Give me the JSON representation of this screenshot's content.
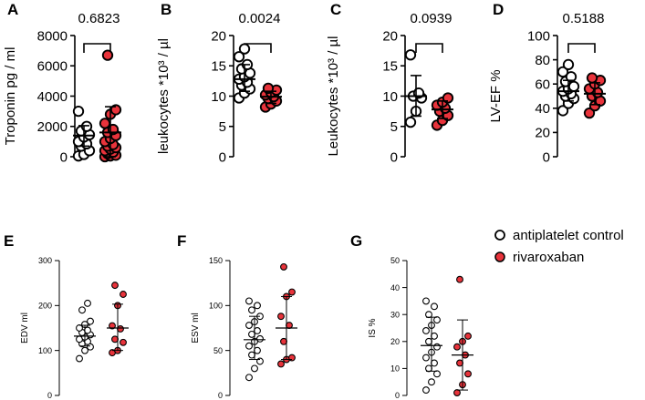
{
  "figure": {
    "legend": [
      {
        "label": "antiplatelet control",
        "fill": "#ffffff",
        "stroke": "#000000"
      },
      {
        "label": "rivaroxaban",
        "fill": "#e8333b",
        "stroke": "#000000"
      }
    ]
  },
  "chart_data": [
    {
      "panel": "A",
      "type": "scatter",
      "ylabel": "Troponin pg / ml",
      "ylim": [
        0,
        8000
      ],
      "yticks": [
        0,
        2000,
        4000,
        6000,
        8000
      ],
      "pvalue": "0.6823",
      "groups": [
        {
          "name": "antiplatelet control",
          "mean": 1400,
          "sd_low": 700,
          "sd_high": 2050,
          "points": [
            50,
            150,
            400,
            700,
            850,
            1000,
            1300,
            1450,
            1700,
            2000,
            3000
          ]
        },
        {
          "name": "rivaroxaban",
          "mean": 1600,
          "sd_low": 0,
          "sd_high": 3300,
          "points": [
            0,
            50,
            100,
            200,
            300,
            400,
            500,
            600,
            700,
            800,
            1000,
            1200,
            1400,
            1600,
            1800,
            2200,
            2800,
            3100,
            6700
          ]
        }
      ]
    },
    {
      "panel": "B",
      "type": "scatter",
      "ylabel": "leukocytes *10³ / µl",
      "ylim": [
        0,
        20
      ],
      "yticks": [
        0,
        5,
        10,
        15,
        20
      ],
      "pvalue": "0.0024",
      "groups": [
        {
          "name": "antiplatelet control",
          "mean": 12.8,
          "sd_low": 10.8,
          "sd_high": 15.2,
          "points": [
            9.7,
            10.5,
            11.2,
            11.8,
            12.3,
            12.8,
            13.2,
            13.8,
            14.5,
            15.2,
            16.5,
            17.8
          ]
        },
        {
          "name": "rivaroxaban",
          "mean": 9.9,
          "sd_low": 8.8,
          "sd_high": 10.8,
          "points": [
            8.2,
            8.7,
            9.2,
            9.6,
            9.9,
            10.2,
            10.6,
            11.0,
            11.3
          ]
        }
      ]
    },
    {
      "panel": "C",
      "type": "scatter",
      "ylabel": "Leukocytes *10³ / µl",
      "ylim": [
        0,
        20
      ],
      "yticks": [
        0,
        5,
        10,
        15,
        20
      ],
      "pvalue": "0.0939",
      "groups": [
        {
          "name": "antiplatelet control",
          "mean": 10.0,
          "sd_low": 6.7,
          "sd_high": 13.4,
          "points": [
            5.7,
            7.5,
            9.7,
            10.0,
            10.5,
            16.8
          ]
        },
        {
          "name": "rivaroxaban",
          "mean": 7.8,
          "sd_low": 6.3,
          "sd_high": 9.2,
          "points": [
            5.2,
            6.0,
            6.8,
            7.5,
            8.0,
            8.5,
            9.0,
            9.7
          ]
        }
      ]
    },
    {
      "panel": "D",
      "type": "scatter",
      "ylabel": "LV-EF %",
      "ylim": [
        0,
        100
      ],
      "yticks": [
        0,
        20,
        40,
        60,
        80,
        100
      ],
      "pvalue": "0.5188",
      "groups": [
        {
          "name": "antiplatelet control",
          "mean": 54,
          "sd_low": 46,
          "sd_high": 63,
          "points": [
            38,
            44,
            48,
            50,
            52,
            54,
            56,
            58,
            62,
            66,
            70,
            76
          ]
        },
        {
          "name": "rivaroxaban",
          "mean": 52,
          "sd_low": 43,
          "sd_high": 61,
          "points": [
            36,
            42,
            46,
            50,
            53,
            56,
            60,
            63,
            65
          ]
        }
      ]
    },
    {
      "panel": "E",
      "type": "scatter",
      "ylabel": "EDV ml",
      "ylim": [
        0,
        300
      ],
      "yticks": [
        0,
        100,
        200,
        300
      ],
      "pvalue": "",
      "groups": [
        {
          "name": "antiplatelet control",
          "mean": 132,
          "sd_low": 110,
          "sd_high": 156,
          "points": [
            82,
            100,
            108,
            115,
            120,
            125,
            130,
            135,
            140,
            145,
            150,
            158,
            165,
            190,
            205
          ]
        },
        {
          "name": "rivaroxaban",
          "mean": 150,
          "sd_low": 100,
          "sd_high": 203,
          "points": [
            95,
            100,
            118,
            125,
            148,
            155,
            200,
            225,
            245
          ]
        }
      ]
    },
    {
      "panel": "F",
      "type": "scatter",
      "ylabel": "ESV ml",
      "ylim": [
        0,
        150
      ],
      "yticks": [
        0,
        50,
        100,
        150
      ],
      "pvalue": "",
      "groups": [
        {
          "name": "antiplatelet control",
          "mean": 62,
          "sd_low": 40,
          "sd_high": 88,
          "points": [
            20,
            30,
            38,
            45,
            50,
            55,
            60,
            63,
            68,
            72,
            78,
            82,
            88,
            95,
            100,
            105
          ]
        },
        {
          "name": "rivaroxaban",
          "mean": 75,
          "sd_low": 40,
          "sd_high": 110,
          "points": [
            35,
            40,
            42,
            60,
            78,
            88,
            110,
            115,
            143
          ]
        }
      ]
    },
    {
      "panel": "G",
      "type": "scatter",
      "ylabel": "IS %",
      "ylim": [
        0,
        50
      ],
      "yticks": [
        0,
        10,
        20,
        30,
        40,
        50
      ],
      "pvalue": "",
      "groups": [
        {
          "name": "antiplatelet control",
          "mean": 18.5,
          "sd_low": 9,
          "sd_high": 29,
          "points": [
            2,
            5,
            8,
            10,
            12,
            14,
            16,
            18,
            20,
            22,
            24,
            26,
            28,
            30,
            33,
            35
          ]
        },
        {
          "name": "rivaroxaban",
          "mean": 15,
          "sd_low": 2,
          "sd_high": 28,
          "points": [
            1,
            4,
            8,
            12,
            15,
            18,
            20,
            22,
            43
          ]
        }
      ]
    }
  ]
}
